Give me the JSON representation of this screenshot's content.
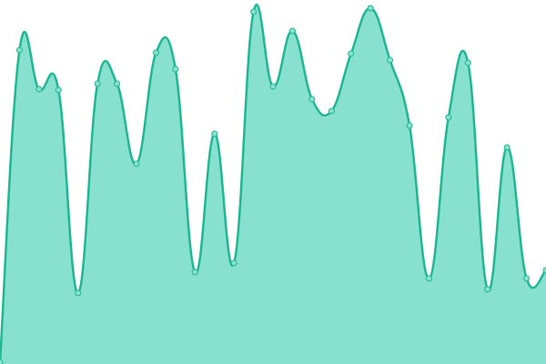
{
  "chart_data": {
    "type": "area",
    "x": [
      0,
      1,
      2,
      3,
      4,
      5,
      6,
      7,
      8,
      9,
      10,
      11,
      12,
      13,
      14,
      15,
      16,
      17,
      18,
      19,
      20,
      21,
      22,
      23,
      24,
      25,
      26,
      27,
      28
    ],
    "xlim": [
      0,
      28
    ],
    "ylim": [
      0,
      400
    ],
    "values": [
      2,
      345,
      302,
      301,
      78,
      308,
      308,
      220,
      342,
      324,
      101,
      253,
      111,
      387,
      305,
      366,
      291,
      278,
      341,
      391,
      334,
      262,
      94,
      271,
      331,
      82,
      238,
      94,
      103
    ],
    "color": "#1fb894",
    "fill": "#88e0cf"
  }
}
